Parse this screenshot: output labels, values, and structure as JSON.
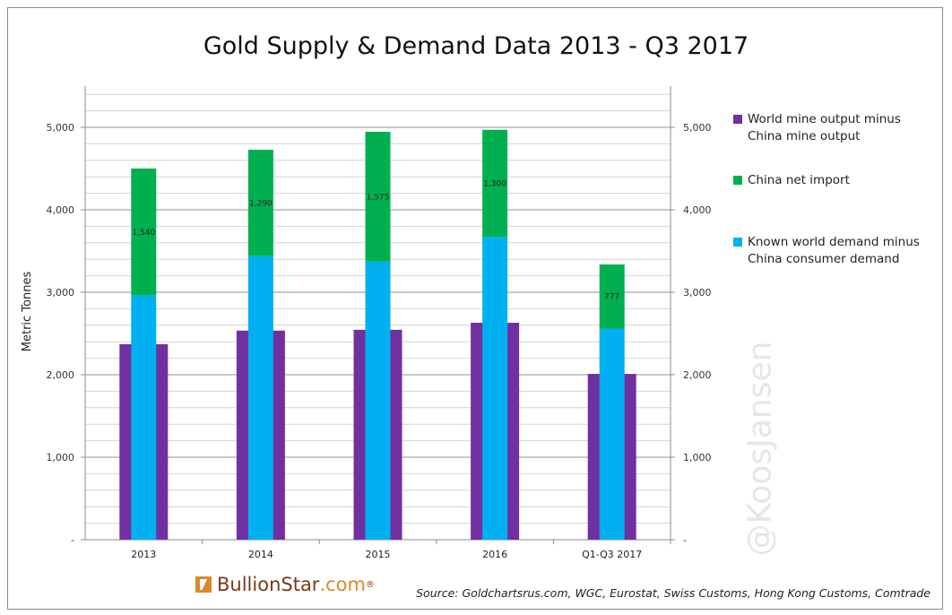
{
  "chart_data": {
    "type": "bar",
    "title": "Gold Supply & Demand Data 2013 - Q3 2017",
    "xlabel": "",
    "ylabel": "Metric Tonnes",
    "ylim": [
      0,
      5500
    ],
    "yticks": [
      0,
      1000,
      2000,
      3000,
      4000,
      5000
    ],
    "ytick_labels": [
      "-",
      "1,000",
      "2,000",
      "3,000",
      "4,000",
      "5,000"
    ],
    "grid": true,
    "legend_position": "right",
    "categories": [
      "2013",
      "2014",
      "2015",
      "2016",
      "Q1-Q3 2017"
    ],
    "series": [
      {
        "name": "World mine output minus China mine output",
        "color": "#7030a0",
        "values": [
          2370,
          2535,
          2545,
          2630,
          2010
        ]
      },
      {
        "name": "Known world demand minus China consumer demand",
        "color": "#00b0f0",
        "values": [
          2960,
          3438,
          3371,
          3670,
          2560
        ]
      },
      {
        "name": "China net import",
        "color": "#00b050",
        "values": [
          1540,
          1290,
          1575,
          1300,
          777
        ],
        "stacked_on": "Known world demand minus China consumer demand",
        "data_labels": [
          "1,540",
          "1,290",
          "1,575",
          "1,300",
          "777"
        ]
      }
    ]
  },
  "legend": [
    {
      "line1": "World mine output minus",
      "line2": "China mine output",
      "color": "#7030a0"
    },
    {
      "line1": "China net import",
      "line2": "",
      "color": "#00b050"
    },
    {
      "line1": "Known world demand minus",
      "line2": "China consumer demand",
      "color": "#00b0f0"
    }
  ],
  "watermark": "@KoosJansen",
  "logo": {
    "name": "BullionStar",
    "tld": ".com",
    "reg": "®"
  },
  "source": "Source: Goldchartsrus.com, WGC, Eurostat, Swiss Customs, Hong Kong Customs, Comtrade"
}
